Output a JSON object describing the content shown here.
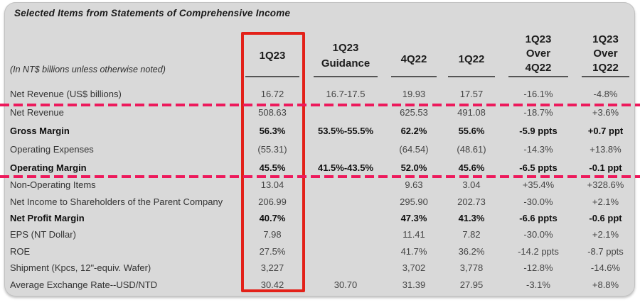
{
  "colors": {
    "accent_red": "#e32119",
    "accent_pink": "#ed1a5c",
    "panel_bg": "#d9d9d9"
  },
  "title": "Selected Items from Statements of Comprehensive Income",
  "unit_note": "(In NT$ billions unless otherwise noted)",
  "table": {
    "columns": [
      {
        "lines": [
          "1Q23"
        ],
        "highlighted": true
      },
      {
        "lines": [
          "1Q23",
          "Guidance"
        ]
      },
      {
        "lines": [
          "4Q22"
        ]
      },
      {
        "lines": [
          "1Q22"
        ]
      },
      {
        "lines": [
          "1Q23",
          "Over",
          "4Q22"
        ]
      },
      {
        "lines": [
          "1Q23",
          "Over",
          "1Q22"
        ]
      }
    ],
    "rows": [
      {
        "label": "Net Revenue (US$ billions)",
        "class": "",
        "values": [
          "16.72",
          "16.7-17.5",
          "19.93",
          "17.57",
          "-16.1%",
          "-4.8%"
        ]
      },
      {
        "label": "Net Revenue",
        "class": "",
        "values": [
          "508.63",
          "",
          "625.53",
          "491.08",
          "-18.7%",
          "+3.6%"
        ]
      },
      {
        "label": "Gross Margin",
        "class": "bold",
        "values": [
          "56.3%",
          "53.5%-55.5%",
          "62.2%",
          "55.6%",
          "-5.9 ppts",
          "+0.7 ppt"
        ]
      },
      {
        "label": "Operating Expenses",
        "class": "",
        "values": [
          "(55.31)",
          "",
          "(64.54)",
          "(48.61)",
          "-14.3%",
          "+13.8%"
        ]
      },
      {
        "label": "Operating Margin",
        "class": "bold",
        "values": [
          "45.5%",
          "41.5%-43.5%",
          "52.0%",
          "45.6%",
          "-6.5 ppts",
          "-0.1 ppt"
        ]
      },
      {
        "label": "Non-Operating Items",
        "class": "",
        "values": [
          "13.04",
          "",
          "9.63",
          "3.04",
          "+35.4%",
          "+328.6%"
        ]
      },
      {
        "label": "Net Income to Shareholders of the Parent Company",
        "class": "",
        "values": [
          "206.99",
          "",
          "295.90",
          "202.73",
          "-30.0%",
          "+2.1%"
        ]
      },
      {
        "label": "Net Profit Margin",
        "class": "bold",
        "values": [
          "40.7%",
          "",
          "47.3%",
          "41.3%",
          "-6.6 ppts",
          "-0.6 ppt"
        ]
      },
      {
        "label": "EPS (NT Dollar)",
        "class": "",
        "values": [
          "7.98",
          "",
          "11.41",
          "7.82",
          "-30.0%",
          "+2.1%"
        ]
      },
      {
        "label": "ROE",
        "class": "",
        "values": [
          "27.5%",
          "",
          "41.7%",
          "36.2%",
          "-14.2 ppts",
          "-8.7 ppts"
        ]
      },
      {
        "label": "Shipment (Kpcs, 12\"-equiv. Wafer)",
        "class": "",
        "values": [
          "3,227",
          "",
          "3,702",
          "3,778",
          "-12.8%",
          "-14.6%"
        ]
      },
      {
        "label": "Average Exchange Rate--USD/NTD",
        "class": "",
        "values": [
          "30.42",
          "30.70",
          "31.39",
          "27.95",
          "-3.1%",
          "+8.8%"
        ]
      }
    ]
  }
}
